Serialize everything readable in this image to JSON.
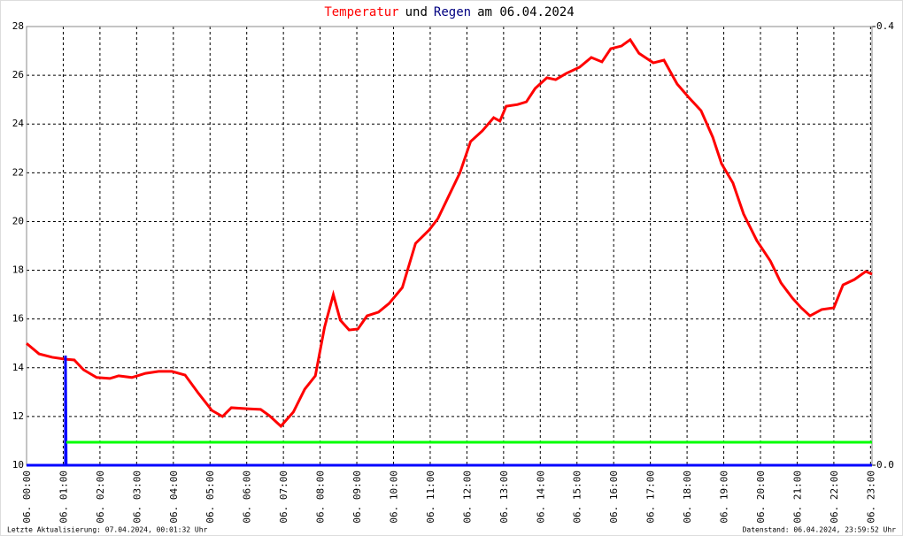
{
  "chart_data": {
    "type": "line",
    "title": [
      {
        "text": "Temperatur",
        "color": "#ff0000"
      },
      {
        "text": "und",
        "color": "#000000"
      },
      {
        "text": "Regen",
        "color": "#000080"
      },
      {
        "text": "am 06.04.2024",
        "color": "#000000"
      }
    ],
    "footer_left": "Letzte Aktualisierung: 07.04.2024, 00:01:32 Uhr",
    "footer_right": "Datenstand: 06.04.2024, 23:59:52 Uhr",
    "xlim": [
      0,
      23.04
    ],
    "xticks": [
      {
        "value": 0,
        "label": "06. 00:00"
      },
      {
        "value": 1,
        "label": "06. 01:00"
      },
      {
        "value": 2,
        "label": "06. 02:00"
      },
      {
        "value": 3,
        "label": "06. 03:00"
      },
      {
        "value": 4,
        "label": "06. 04:00"
      },
      {
        "value": 5,
        "label": "06. 05:00"
      },
      {
        "value": 6,
        "label": "06. 06:00"
      },
      {
        "value": 7,
        "label": "06. 07:00"
      },
      {
        "value": 8,
        "label": "06. 08:00"
      },
      {
        "value": 9,
        "label": "06. 09:00"
      },
      {
        "value": 10,
        "label": "06. 10:00"
      },
      {
        "value": 11,
        "label": "06. 11:00"
      },
      {
        "value": 12,
        "label": "06. 12:00"
      },
      {
        "value": 13,
        "label": "06. 13:00"
      },
      {
        "value": 14,
        "label": "06. 14:00"
      },
      {
        "value": 15,
        "label": "06. 15:00"
      },
      {
        "value": 16,
        "label": "06. 16:00"
      },
      {
        "value": 17,
        "label": "06. 17:00"
      },
      {
        "value": 18,
        "label": "06. 18:00"
      },
      {
        "value": 19,
        "label": "06. 19:00"
      },
      {
        "value": 20,
        "label": "06. 20:00"
      },
      {
        "value": 21,
        "label": "06. 21:00"
      },
      {
        "value": 22,
        "label": "06. 22:00"
      },
      {
        "value": 23,
        "label": "06. 23:00"
      }
    ],
    "ylim": [
      10,
      28
    ],
    "yticks": [
      10,
      12,
      14,
      16,
      18,
      20,
      22,
      24,
      26,
      28
    ],
    "y2lim": [
      0,
      0.4
    ],
    "y2ticks": [
      {
        "value": 0,
        "label": "0.0"
      },
      0.4
    ],
    "grid": true,
    "series": [
      {
        "color": "#ff0000",
        "x": [
          0,
          0.34,
          0.7,
          1.06,
          1.3,
          1.55,
          1.91,
          2.27,
          2.51,
          2.87,
          3.24,
          3.6,
          3.96,
          4.32,
          4.69,
          5.05,
          5.34,
          5.58,
          6.01,
          6.38,
          6.62,
          6.93,
          7.27,
          7.58,
          7.87,
          8.12,
          8.36,
          8.55,
          8.79,
          9.03,
          9.28,
          9.59,
          9.88,
          10.24,
          10.6,
          10.97,
          11.21,
          11.5,
          11.81,
          12.1,
          12.42,
          12.73,
          12.9,
          13.07,
          13.38,
          13.62,
          13.86,
          14.18,
          14.42,
          14.71,
          15.07,
          15.39,
          15.68,
          15.92,
          16.21,
          16.45,
          16.69,
          17.08,
          17.37,
          17.73,
          18.04,
          18.38,
          18.7,
          18.94,
          19.25,
          19.54,
          19.9,
          20.27,
          20.56,
          20.87,
          21.11,
          21.35,
          21.67,
          22.0,
          22.25,
          22.56,
          22.87,
          23.04
        ],
        "values": [
          15.0,
          14.57,
          14.43,
          14.35,
          14.32,
          13.92,
          13.6,
          13.56,
          13.67,
          13.6,
          13.77,
          13.85,
          13.85,
          13.7,
          12.94,
          12.25,
          12.0,
          12.36,
          12.32,
          12.29,
          12.03,
          11.6,
          12.18,
          13.12,
          13.67,
          15.66,
          17.0,
          15.95,
          15.55,
          15.59,
          16.13,
          16.28,
          16.64,
          17.29,
          19.1,
          19.65,
          20.12,
          21.03,
          22.0,
          23.28,
          23.72,
          24.26,
          24.12,
          24.73,
          24.8,
          24.91,
          25.46,
          25.9,
          25.82,
          26.08,
          26.33,
          26.73,
          26.55,
          27.09,
          27.2,
          27.46,
          26.9,
          26.51,
          26.62,
          25.64,
          25.1,
          24.55,
          23.46,
          22.37,
          21.58,
          20.31,
          19.22,
          18.38,
          17.48,
          16.86,
          16.46,
          16.13,
          16.39,
          16.46,
          17.4,
          17.62,
          17.95,
          17.84
        ]
      },
      {
        "color": "#0000ff",
        "axis": "y2",
        "x": [
          0,
          1.06,
          1.06,
          1.08,
          23.04
        ],
        "values": [
          0,
          0,
          0.1,
          0,
          0
        ]
      },
      {
        "color": "#00ff00",
        "axis": "y2",
        "x": [
          1.08,
          23.04
        ],
        "values": [
          0.021,
          0.021
        ]
      }
    ]
  }
}
